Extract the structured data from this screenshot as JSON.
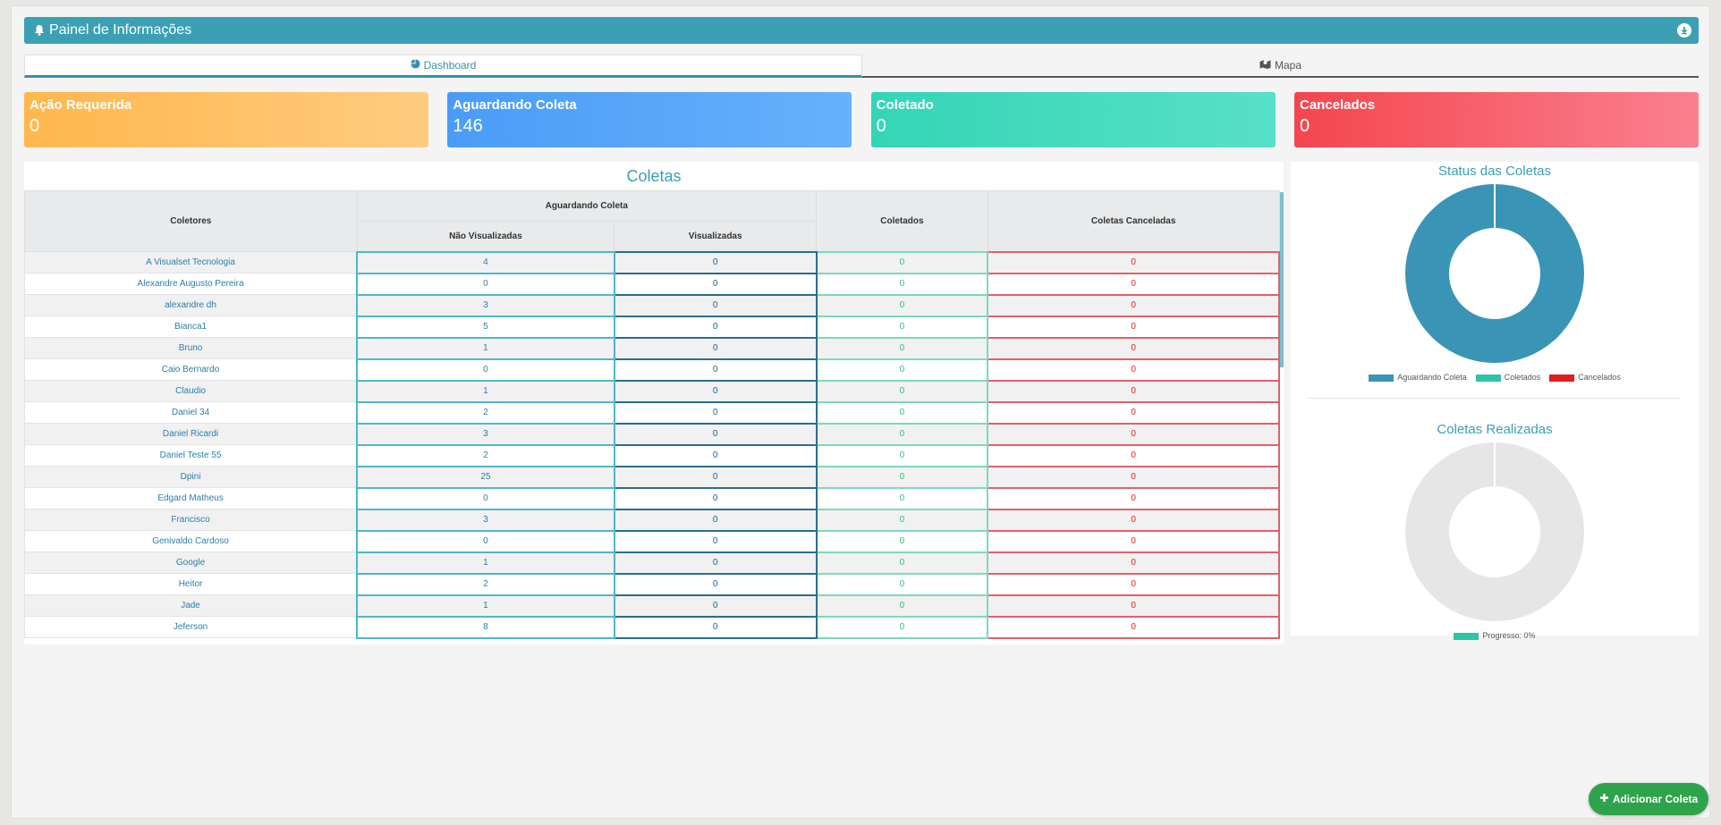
{
  "header": {
    "title": "Painel de Informações"
  },
  "tabs": [
    {
      "label": "Dashboard"
    },
    {
      "label": "Mapa"
    }
  ],
  "cards": [
    {
      "title": "Ação Requerida",
      "value": "0"
    },
    {
      "title": "Aguardando Coleta",
      "value": "146"
    },
    {
      "title": "Coletado",
      "value": "0"
    },
    {
      "title": "Cancelados",
      "value": "0"
    }
  ],
  "table": {
    "title": "Coletas",
    "headers": {
      "coletores": "Coletores",
      "aguardando": "Aguardando Coleta",
      "nao_visualizadas": "Não Visualizadas",
      "visualizadas": "Visualizadas",
      "coletados": "Coletados",
      "canceladas": "Coletas Canceladas"
    },
    "rows": [
      {
        "name": "A Visualset Tecnologia",
        "nv": "4",
        "v": "0",
        "c": "0",
        "x": "0"
      },
      {
        "name": "Alexandre Augusto Pereira",
        "nv": "0",
        "v": "0",
        "c": "0",
        "x": "0"
      },
      {
        "name": "alexandre dh",
        "nv": "3",
        "v": "0",
        "c": "0",
        "x": "0"
      },
      {
        "name": "Bianca1",
        "nv": "5",
        "v": "0",
        "c": "0",
        "x": "0"
      },
      {
        "name": "Bruno",
        "nv": "1",
        "v": "0",
        "c": "0",
        "x": "0"
      },
      {
        "name": "Caio Bernardo",
        "nv": "0",
        "v": "0",
        "c": "0",
        "x": "0"
      },
      {
        "name": "Claudio",
        "nv": "1",
        "v": "0",
        "c": "0",
        "x": "0"
      },
      {
        "name": "Daniel 34",
        "nv": "2",
        "v": "0",
        "c": "0",
        "x": "0"
      },
      {
        "name": "Daniel Ricardi",
        "nv": "3",
        "v": "0",
        "c": "0",
        "x": "0"
      },
      {
        "name": "Daniel Teste 55",
        "nv": "2",
        "v": "0",
        "c": "0",
        "x": "0"
      },
      {
        "name": "Dpini",
        "nv": "25",
        "v": "0",
        "c": "0",
        "x": "0"
      },
      {
        "name": "Edgard Matheus",
        "nv": "0",
        "v": "0",
        "c": "0",
        "x": "0"
      },
      {
        "name": "Francisco",
        "nv": "3",
        "v": "0",
        "c": "0",
        "x": "0"
      },
      {
        "name": "Genivaldo Cardoso",
        "nv": "0",
        "v": "0",
        "c": "0",
        "x": "0"
      },
      {
        "name": "Google",
        "nv": "1",
        "v": "0",
        "c": "0",
        "x": "0"
      },
      {
        "name": "Heitor",
        "nv": "2",
        "v": "0",
        "c": "0",
        "x": "0"
      },
      {
        "name": "Jade",
        "nv": "1",
        "v": "0",
        "c": "0",
        "x": "0"
      },
      {
        "name": "Jeferson",
        "nv": "8",
        "v": "0",
        "c": "0",
        "x": "0"
      }
    ]
  },
  "status_chart": {
    "title": "Status das Coletas",
    "legend": [
      {
        "label": "Aguardando Coleta",
        "color": "#3a94b5"
      },
      {
        "label": "Coletados",
        "color": "#2ec4a8"
      },
      {
        "label": "Cancelados",
        "color": "#dd1f1f"
      }
    ]
  },
  "progress_chart": {
    "title": "Coletas Realizadas",
    "legend": [
      {
        "label": "Progresso: 0%",
        "color": "#2ec4a8"
      }
    ]
  },
  "chart_data": [
    {
      "type": "pie",
      "title": "Status das Coletas",
      "categories": [
        "Aguardando Coleta",
        "Coletados",
        "Cancelados"
      ],
      "values": [
        146,
        0,
        0
      ]
    },
    {
      "type": "pie",
      "title": "Coletas Realizadas",
      "categories": [
        "Progresso: 0%"
      ],
      "values": [
        0
      ]
    }
  ],
  "fab": {
    "label": "Adicionar Coleta"
  }
}
